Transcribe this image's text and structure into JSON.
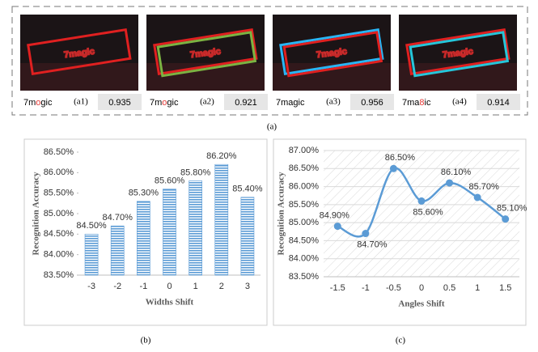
{
  "panel_a": {
    "caption": "(a)",
    "items": [
      {
        "image_text": "7magic",
        "prediction_parts": [
          "7m",
          "o",
          "gic"
        ],
        "label": "(a1)",
        "score": 0.935
      },
      {
        "image_text": "7magic",
        "prediction_parts": [
          "7m",
          "o",
          "gic"
        ],
        "label": "(a2)",
        "score": 0.921
      },
      {
        "image_text": "7magic",
        "prediction_parts": [
          "7magic"
        ],
        "label": "(a3)",
        "score": 0.956
      },
      {
        "image_text": "7magic",
        "prediction_parts": [
          "7ma",
          "8",
          "ic"
        ],
        "label": "(a4)",
        "score": 0.914
      }
    ]
  },
  "chart_data": [
    {
      "type": "bar",
      "caption": "(b)",
      "ylabel": "Recognition Accuracy",
      "xlabel": "Widths  Shift",
      "categories": [
        "-3",
        "-2",
        "-1",
        "0",
        "1",
        "2",
        "3"
      ],
      "values": [
        84.5,
        84.7,
        85.3,
        85.6,
        85.8,
        86.2,
        85.4
      ],
      "value_labels": [
        "84.50%",
        "84.70%",
        "85.30%",
        "85.60%",
        "85.80%",
        "86.20%",
        "85.40%"
      ],
      "color": "#5b9bd5",
      "ylim": [
        83.5,
        86.5
      ],
      "yticks": [
        {
          "value": 83.5,
          "label": "83.50%"
        },
        {
          "value": 84,
          "label": "84.00%"
        },
        {
          "value": 84.5,
          "label": "84.50%"
        },
        {
          "value": 85,
          "label": "85.00%"
        },
        {
          "value": 85.5,
          "label": "85.50%"
        },
        {
          "value": 86,
          "label": "86.00%"
        },
        {
          "value": 86.5,
          "label": "86.50%"
        }
      ],
      "grid": false
    },
    {
      "type": "line",
      "caption": "(c)",
      "ylabel": "Recognition Accuracy",
      "xlabel": "Angles  Shift",
      "categories": [
        "-1.5",
        "-1",
        "-0.5",
        "0",
        "0.5",
        "1",
        "1.5"
      ],
      "values": [
        84.9,
        84.7,
        86.5,
        85.6,
        86.1,
        85.7,
        85.1
      ],
      "value_labels": [
        "84.90%",
        "84.70%",
        "86.50%",
        "85.60%",
        "86.10%",
        "85.70%",
        "85.10%"
      ],
      "color": "#5b9bd5",
      "ylim": [
        83.5,
        87
      ],
      "yticks": [
        {
          "value": 83.5,
          "label": "83.50%"
        },
        {
          "value": 84,
          "label": "84.00%"
        },
        {
          "value": 84.5,
          "label": "84.50%"
        },
        {
          "value": 85,
          "label": "85.00%"
        },
        {
          "value": 85.5,
          "label": "85.50%"
        },
        {
          "value": 86,
          "label": "86.00%"
        },
        {
          "value": 86.5,
          "label": "86.50%"
        },
        {
          "value": 87,
          "label": "87.00%"
        }
      ],
      "grid": true
    }
  ]
}
